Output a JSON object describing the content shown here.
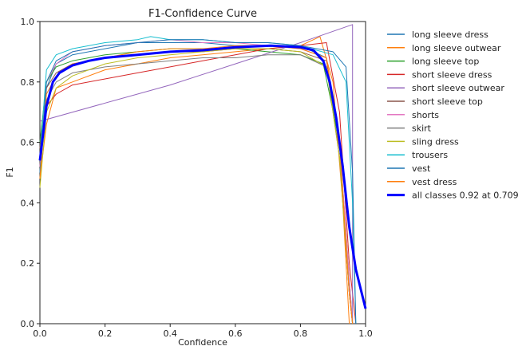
{
  "chart_data": {
    "type": "line",
    "title": "F1-Confidence Curve",
    "xlabel": "Confidence",
    "ylabel": "F1",
    "xlim": [
      0,
      1
    ],
    "ylim": [
      0,
      1
    ],
    "xticks": [
      "0.0",
      "0.2",
      "0.4",
      "0.6",
      "0.8",
      "1.0"
    ],
    "yticks": [
      "0.0",
      "0.2",
      "0.4",
      "0.6",
      "0.8",
      "1.0"
    ],
    "grid": false,
    "legend_position": "outside-right",
    "series": [
      {
        "name": "long sleeve dress",
        "color": "#1f77b4",
        "points": [
          [
            0,
            0.5
          ],
          [
            0.02,
            0.78
          ],
          [
            0.05,
            0.86
          ],
          [
            0.1,
            0.89
          ],
          [
            0.2,
            0.91
          ],
          [
            0.3,
            0.93
          ],
          [
            0.4,
            0.93
          ],
          [
            0.5,
            0.93
          ],
          [
            0.6,
            0.92
          ],
          [
            0.7,
            0.92
          ],
          [
            0.8,
            0.92
          ],
          [
            0.88,
            0.88
          ],
          [
            0.92,
            0.55
          ],
          [
            0.95,
            0.1
          ],
          [
            0.96,
            0
          ]
        ]
      },
      {
        "name": "long sleeve outwear",
        "color": "#ff7f0e",
        "points": [
          [
            0,
            0.48
          ],
          [
            0.02,
            0.66
          ],
          [
            0.05,
            0.78
          ],
          [
            0.1,
            0.8
          ],
          [
            0.2,
            0.84
          ],
          [
            0.3,
            0.86
          ],
          [
            0.4,
            0.88
          ],
          [
            0.5,
            0.89
          ],
          [
            0.6,
            0.9
          ],
          [
            0.7,
            0.91
          ],
          [
            0.8,
            0.92
          ],
          [
            0.86,
            0.95
          ],
          [
            0.9,
            0.8
          ],
          [
            0.93,
            0.4
          ],
          [
            0.95,
            0
          ]
        ]
      },
      {
        "name": "long sleeve top",
        "color": "#2ca02c",
        "points": [
          [
            0,
            0.6
          ],
          [
            0.02,
            0.8
          ],
          [
            0.05,
            0.85
          ],
          [
            0.1,
            0.87
          ],
          [
            0.2,
            0.89
          ],
          [
            0.3,
            0.9
          ],
          [
            0.4,
            0.91
          ],
          [
            0.5,
            0.91
          ],
          [
            0.6,
            0.91
          ],
          [
            0.7,
            0.9
          ],
          [
            0.8,
            0.89
          ],
          [
            0.87,
            0.86
          ],
          [
            0.92,
            0.6
          ],
          [
            0.95,
            0.15
          ],
          [
            0.96,
            0
          ]
        ]
      },
      {
        "name": "short sleeve dress",
        "color": "#d62728",
        "points": [
          [
            0,
            0.55
          ],
          [
            0.02,
            0.72
          ],
          [
            0.05,
            0.76
          ],
          [
            0.1,
            0.79
          ],
          [
            0.2,
            0.81
          ],
          [
            0.3,
            0.83
          ],
          [
            0.4,
            0.85
          ],
          [
            0.5,
            0.87
          ],
          [
            0.6,
            0.89
          ],
          [
            0.7,
            0.91
          ],
          [
            0.8,
            0.92
          ],
          [
            0.88,
            0.93
          ],
          [
            0.92,
            0.7
          ],
          [
            0.95,
            0.2
          ],
          [
            0.97,
            0
          ]
        ]
      },
      {
        "name": "short sleeve outwear",
        "color": "#9467bd",
        "points": [
          [
            0,
            0.67
          ],
          [
            0.2,
            0.73
          ],
          [
            0.4,
            0.79
          ],
          [
            0.6,
            0.86
          ],
          [
            0.8,
            0.93
          ],
          [
            0.96,
            0.99
          ],
          [
            0.96,
            0
          ]
        ]
      },
      {
        "name": "short sleeve top",
        "color": "#8c564b",
        "points": [
          [
            0,
            0.58
          ],
          [
            0.02,
            0.78
          ],
          [
            0.05,
            0.83
          ],
          [
            0.1,
            0.86
          ],
          [
            0.2,
            0.88
          ],
          [
            0.3,
            0.89
          ],
          [
            0.4,
            0.9
          ],
          [
            0.5,
            0.9
          ],
          [
            0.6,
            0.91
          ],
          [
            0.7,
            0.91
          ],
          [
            0.8,
            0.9
          ],
          [
            0.88,
            0.87
          ],
          [
            0.92,
            0.6
          ],
          [
            0.95,
            0.1
          ],
          [
            0.96,
            0
          ]
        ]
      },
      {
        "name": "shorts",
        "color": "#e377c2",
        "points": [
          [
            0,
            0.52
          ],
          [
            0.02,
            0.8
          ],
          [
            0.05,
            0.86
          ],
          [
            0.1,
            0.9
          ],
          [
            0.2,
            0.92
          ],
          [
            0.3,
            0.93
          ],
          [
            0.4,
            0.94
          ],
          [
            0.5,
            0.93
          ],
          [
            0.6,
            0.93
          ],
          [
            0.7,
            0.92
          ],
          [
            0.8,
            0.91
          ],
          [
            0.88,
            0.88
          ],
          [
            0.92,
            0.6
          ],
          [
            0.95,
            0.15
          ],
          [
            0.96,
            0
          ]
        ]
      },
      {
        "name": "skirt",
        "color": "#7f7f7f",
        "points": [
          [
            0,
            0.5
          ],
          [
            0.02,
            0.74
          ],
          [
            0.05,
            0.8
          ],
          [
            0.1,
            0.83
          ],
          [
            0.2,
            0.85
          ],
          [
            0.3,
            0.86
          ],
          [
            0.4,
            0.87
          ],
          [
            0.5,
            0.88
          ],
          [
            0.6,
            0.88
          ],
          [
            0.7,
            0.89
          ],
          [
            0.8,
            0.89
          ],
          [
            0.88,
            0.85
          ],
          [
            0.92,
            0.55
          ],
          [
            0.95,
            0.1
          ],
          [
            0.96,
            0
          ]
        ]
      },
      {
        "name": "sling dress",
        "color": "#bcbd22",
        "points": [
          [
            0,
            0.45
          ],
          [
            0.02,
            0.7
          ],
          [
            0.05,
            0.78
          ],
          [
            0.1,
            0.82
          ],
          [
            0.2,
            0.86
          ],
          [
            0.3,
            0.88
          ],
          [
            0.4,
            0.89
          ],
          [
            0.5,
            0.9
          ],
          [
            0.6,
            0.91
          ],
          [
            0.7,
            0.91
          ],
          [
            0.8,
            0.9
          ],
          [
            0.88,
            0.85
          ],
          [
            0.92,
            0.55
          ],
          [
            0.95,
            0.1
          ],
          [
            0.96,
            0
          ]
        ]
      },
      {
        "name": "trousers",
        "color": "#17becf",
        "points": [
          [
            0,
            0.55
          ],
          [
            0.02,
            0.84
          ],
          [
            0.05,
            0.89
          ],
          [
            0.1,
            0.91
          ],
          [
            0.2,
            0.93
          ],
          [
            0.3,
            0.94
          ],
          [
            0.34,
            0.95
          ],
          [
            0.4,
            0.94
          ],
          [
            0.5,
            0.94
          ],
          [
            0.6,
            0.93
          ],
          [
            0.7,
            0.93
          ],
          [
            0.8,
            0.92
          ],
          [
            0.9,
            0.89
          ],
          [
            0.94,
            0.8
          ],
          [
            0.96,
            0.4
          ],
          [
            0.97,
            0
          ]
        ]
      },
      {
        "name": "vest",
        "color": "#1f77b4",
        "points": [
          [
            0,
            0.5
          ],
          [
            0.02,
            0.8
          ],
          [
            0.05,
            0.87
          ],
          [
            0.1,
            0.9
          ],
          [
            0.2,
            0.92
          ],
          [
            0.3,
            0.93
          ],
          [
            0.4,
            0.94
          ],
          [
            0.5,
            0.94
          ],
          [
            0.6,
            0.93
          ],
          [
            0.7,
            0.93
          ],
          [
            0.8,
            0.92
          ],
          [
            0.9,
            0.9
          ],
          [
            0.94,
            0.85
          ],
          [
            0.96,
            0.5
          ],
          [
            0.97,
            0
          ]
        ]
      },
      {
        "name": "vest dress",
        "color": "#ff7f0e",
        "points": [
          [
            0,
            0.48
          ],
          [
            0.02,
            0.76
          ],
          [
            0.05,
            0.82
          ],
          [
            0.1,
            0.86
          ],
          [
            0.2,
            0.88
          ],
          [
            0.3,
            0.9
          ],
          [
            0.4,
            0.91
          ],
          [
            0.5,
            0.91
          ],
          [
            0.6,
            0.92
          ],
          [
            0.7,
            0.92
          ],
          [
            0.8,
            0.91
          ],
          [
            0.88,
            0.88
          ],
          [
            0.92,
            0.6
          ],
          [
            0.95,
            0.1
          ],
          [
            0.96,
            0
          ]
        ]
      },
      {
        "name": "all classes 0.92 at 0.709",
        "color": "#0000ff",
        "bold": true,
        "points": [
          [
            0,
            0.54
          ],
          [
            0.01,
            0.63
          ],
          [
            0.02,
            0.72
          ],
          [
            0.04,
            0.8
          ],
          [
            0.06,
            0.83
          ],
          [
            0.1,
            0.855
          ],
          [
            0.15,
            0.87
          ],
          [
            0.2,
            0.88
          ],
          [
            0.3,
            0.89
          ],
          [
            0.4,
            0.9
          ],
          [
            0.5,
            0.905
          ],
          [
            0.6,
            0.915
          ],
          [
            0.709,
            0.92
          ],
          [
            0.8,
            0.915
          ],
          [
            0.84,
            0.905
          ],
          [
            0.87,
            0.87
          ],
          [
            0.89,
            0.8
          ],
          [
            0.91,
            0.68
          ],
          [
            0.93,
            0.52
          ],
          [
            0.95,
            0.32
          ],
          [
            0.97,
            0.18
          ],
          [
            1.0,
            0.05
          ]
        ]
      }
    ]
  }
}
